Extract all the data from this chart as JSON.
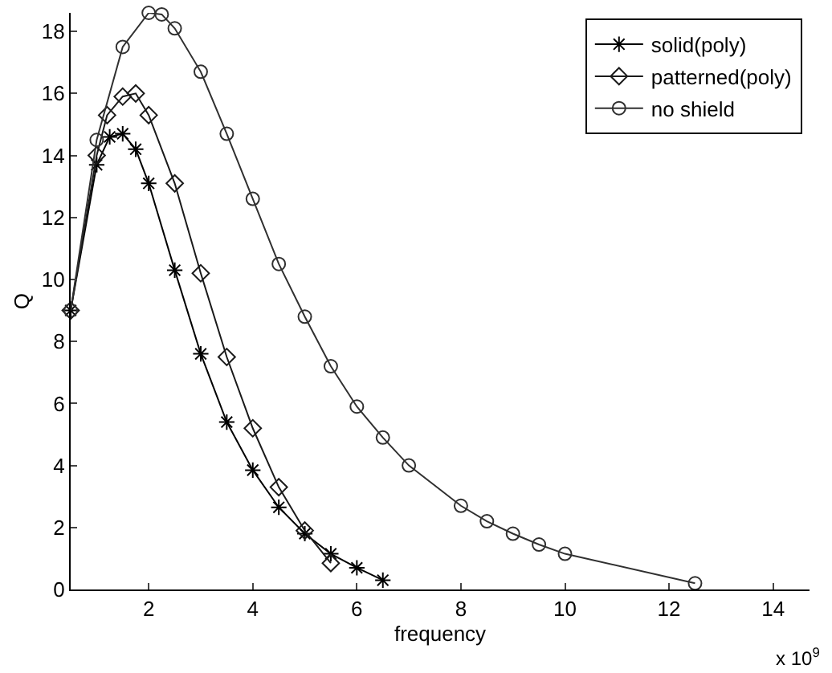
{
  "chart_data": {
    "type": "line",
    "xlabel": "frequency",
    "ylabel": "Q",
    "annotations": [
      "x 10$^{9}$"
    ],
    "xlim": [
      0.5,
      14.7
    ],
    "xticks": [
      2,
      4,
      6,
      8,
      10,
      12,
      14
    ],
    "ylim": [
      0,
      18.6
    ],
    "yticks": [
      0,
      2,
      4,
      6,
      8,
      10,
      12,
      14,
      16,
      18
    ],
    "grid": false,
    "legend": "top right",
    "line_style": "solid",
    "series": [
      {
        "name": "solid(poly)",
        "color": "#000000",
        "marker": "cross",
        "x": [
          0.5,
          1.0,
          1.25,
          1.5,
          1.75,
          2.0,
          2.5,
          3.0,
          3.5,
          4.0,
          4.5,
          5.0,
          5.5,
          6.0,
          6.5
        ],
        "values": [
          9,
          13.7,
          14.6,
          14.7,
          14.2,
          13.1,
          10.3,
          7.6,
          5.4,
          3.85,
          2.65,
          1.8,
          1.15,
          0.7,
          0.3
        ]
      },
      {
        "name": "patterned(poly)",
        "color": "#1a1a1a",
        "marker": "diamond",
        "x": [
          0.5,
          1.0,
          1.2,
          1.5,
          1.75,
          2.0,
          2.5,
          3.0,
          3.5,
          4.0,
          4.5,
          5.0,
          5.5
        ],
        "values": [
          9,
          14.0,
          15.3,
          15.9,
          16.0,
          15.3,
          13.1,
          10.2,
          7.5,
          5.2,
          3.3,
          1.9,
          0.85
        ]
      },
      {
        "name": "no shield",
        "color": "#303030",
        "marker": "circle",
        "x": [
          0.5,
          1.0,
          1.5,
          2.0,
          2.25,
          2.5,
          3.0,
          3.5,
          4.0,
          4.5,
          5.0,
          5.5,
          6.0,
          6.5,
          7.0,
          8.0,
          8.5,
          9.0,
          9.5,
          10.0,
          12.5
        ],
        "values": [
          9,
          14.5,
          17.5,
          18.6,
          18.55,
          18.1,
          16.7,
          14.7,
          12.6,
          10.5,
          8.8,
          7.2,
          5.9,
          4.9,
          4.0,
          2.7,
          2.2,
          1.8,
          1.45,
          1.15,
          0.2
        ]
      }
    ]
  }
}
